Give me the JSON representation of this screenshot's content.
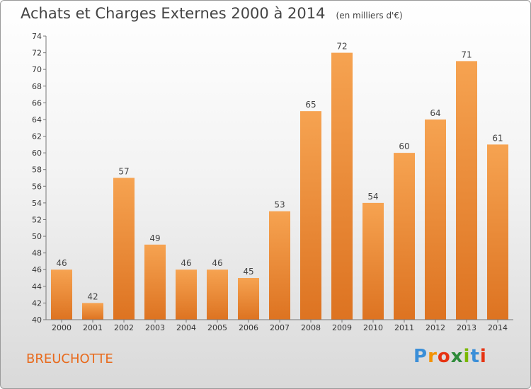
{
  "header": {
    "title": "Achats et Charges Externes 2000 à 2014",
    "unit": "(en milliers d'€)"
  },
  "footer": {
    "commune": "BREUCHOTTE",
    "logo_letters": [
      "P",
      "r",
      "o",
      "x",
      "i",
      "t",
      "i"
    ],
    "logo_colors": [
      "#3b8fd8",
      "#f39200",
      "#e63312",
      "#2e8b3a",
      "#7ab800",
      "#3b8fd8",
      "#e63312"
    ]
  },
  "chart_data": {
    "type": "bar",
    "title": "Achats et Charges Externes 2000 à 2014",
    "subtitle": "(en milliers d'€)",
    "xlabel": "",
    "ylabel": "",
    "categories": [
      "2000",
      "2001",
      "2002",
      "2003",
      "2004",
      "2005",
      "2006",
      "2007",
      "2008",
      "2009",
      "2010",
      "2011",
      "2012",
      "2013",
      "2014"
    ],
    "values": [
      46,
      42,
      57,
      49,
      46,
      46,
      45,
      53,
      65,
      72,
      54,
      60,
      64,
      71,
      61
    ],
    "ylim": [
      40,
      74
    ],
    "yticks": [
      40,
      42,
      44,
      46,
      48,
      50,
      52,
      54,
      56,
      58,
      60,
      62,
      64,
      66,
      68,
      70,
      72,
      74
    ],
    "grid": false,
    "bar_color_top": "#f6a351",
    "bar_color_bottom": "#dd7321"
  }
}
